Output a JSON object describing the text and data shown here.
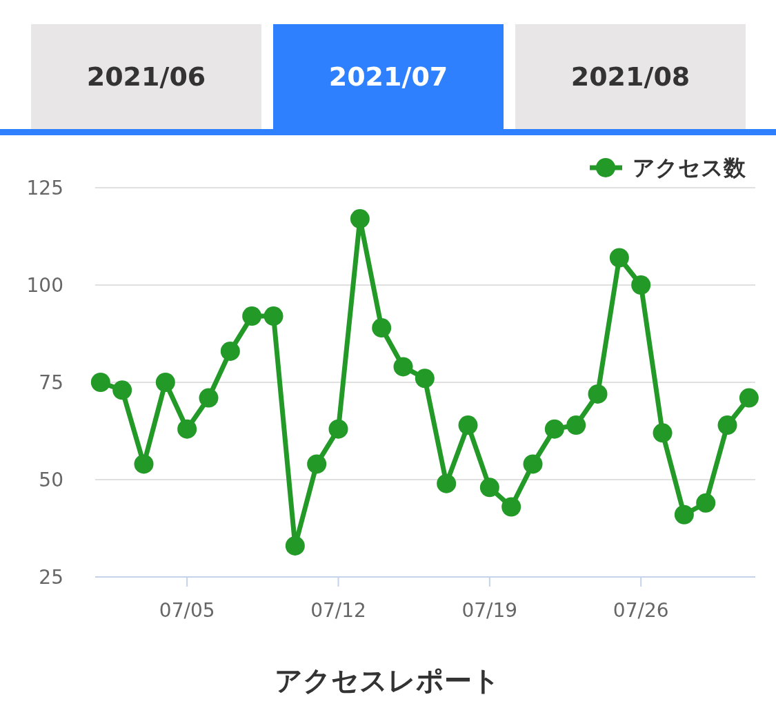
{
  "chart_data": {
    "type": "line",
    "xlabel": "アクセスレポート",
    "annotations": [
      "2021/06",
      "2021/07",
      "2021/08"
    ],
    "x": [
      "2021-07-01",
      "2021-07-02",
      "2021-07-03",
      "2021-07-04",
      "2021-07-05",
      "2021-07-06",
      "2021-07-07",
      "2021-07-08",
      "2021-07-09",
      "2021-07-10",
      "2021-07-11",
      "2021-07-12",
      "2021-07-13",
      "2021-07-14",
      "2021-07-15",
      "2021-07-16",
      "2021-07-17",
      "2021-07-18",
      "2021-07-19",
      "2021-07-20",
      "2021-07-21",
      "2021-07-22",
      "2021-07-23",
      "2021-07-24",
      "2021-07-25",
      "2021-07-26",
      "2021-07-27",
      "2021-07-28",
      "2021-07-29",
      "2021-07-30",
      "2021-07-31"
    ],
    "series": [
      {
        "name": "アクセス数",
        "color": "#239a27",
        "values": [
          75,
          73,
          54,
          75,
          63,
          71,
          83,
          92,
          92,
          33,
          54,
          63,
          117,
          89,
          79,
          76,
          49,
          64,
          48,
          43,
          54,
          63,
          64,
          72,
          107,
          100,
          62,
          41,
          44,
          64,
          71
        ]
      }
    ],
    "xlim": [
      "2021-06-30T18:00",
      "2021-07-31T07:00"
    ],
    "xticks": [
      {
        "value": "2021-07-05",
        "label": "07/05"
      },
      {
        "value": "2021-07-12",
        "label": "07/12"
      },
      {
        "value": "2021-07-19",
        "label": "07/19"
      },
      {
        "value": "2021-07-26",
        "label": "07/26"
      }
    ],
    "ylim": [
      25,
      125
    ],
    "yticks": [
      25,
      50,
      75,
      100,
      125
    ],
    "grid": "y",
    "legend": "top right",
    "marker": "circle",
    "line_style": "solid"
  }
}
